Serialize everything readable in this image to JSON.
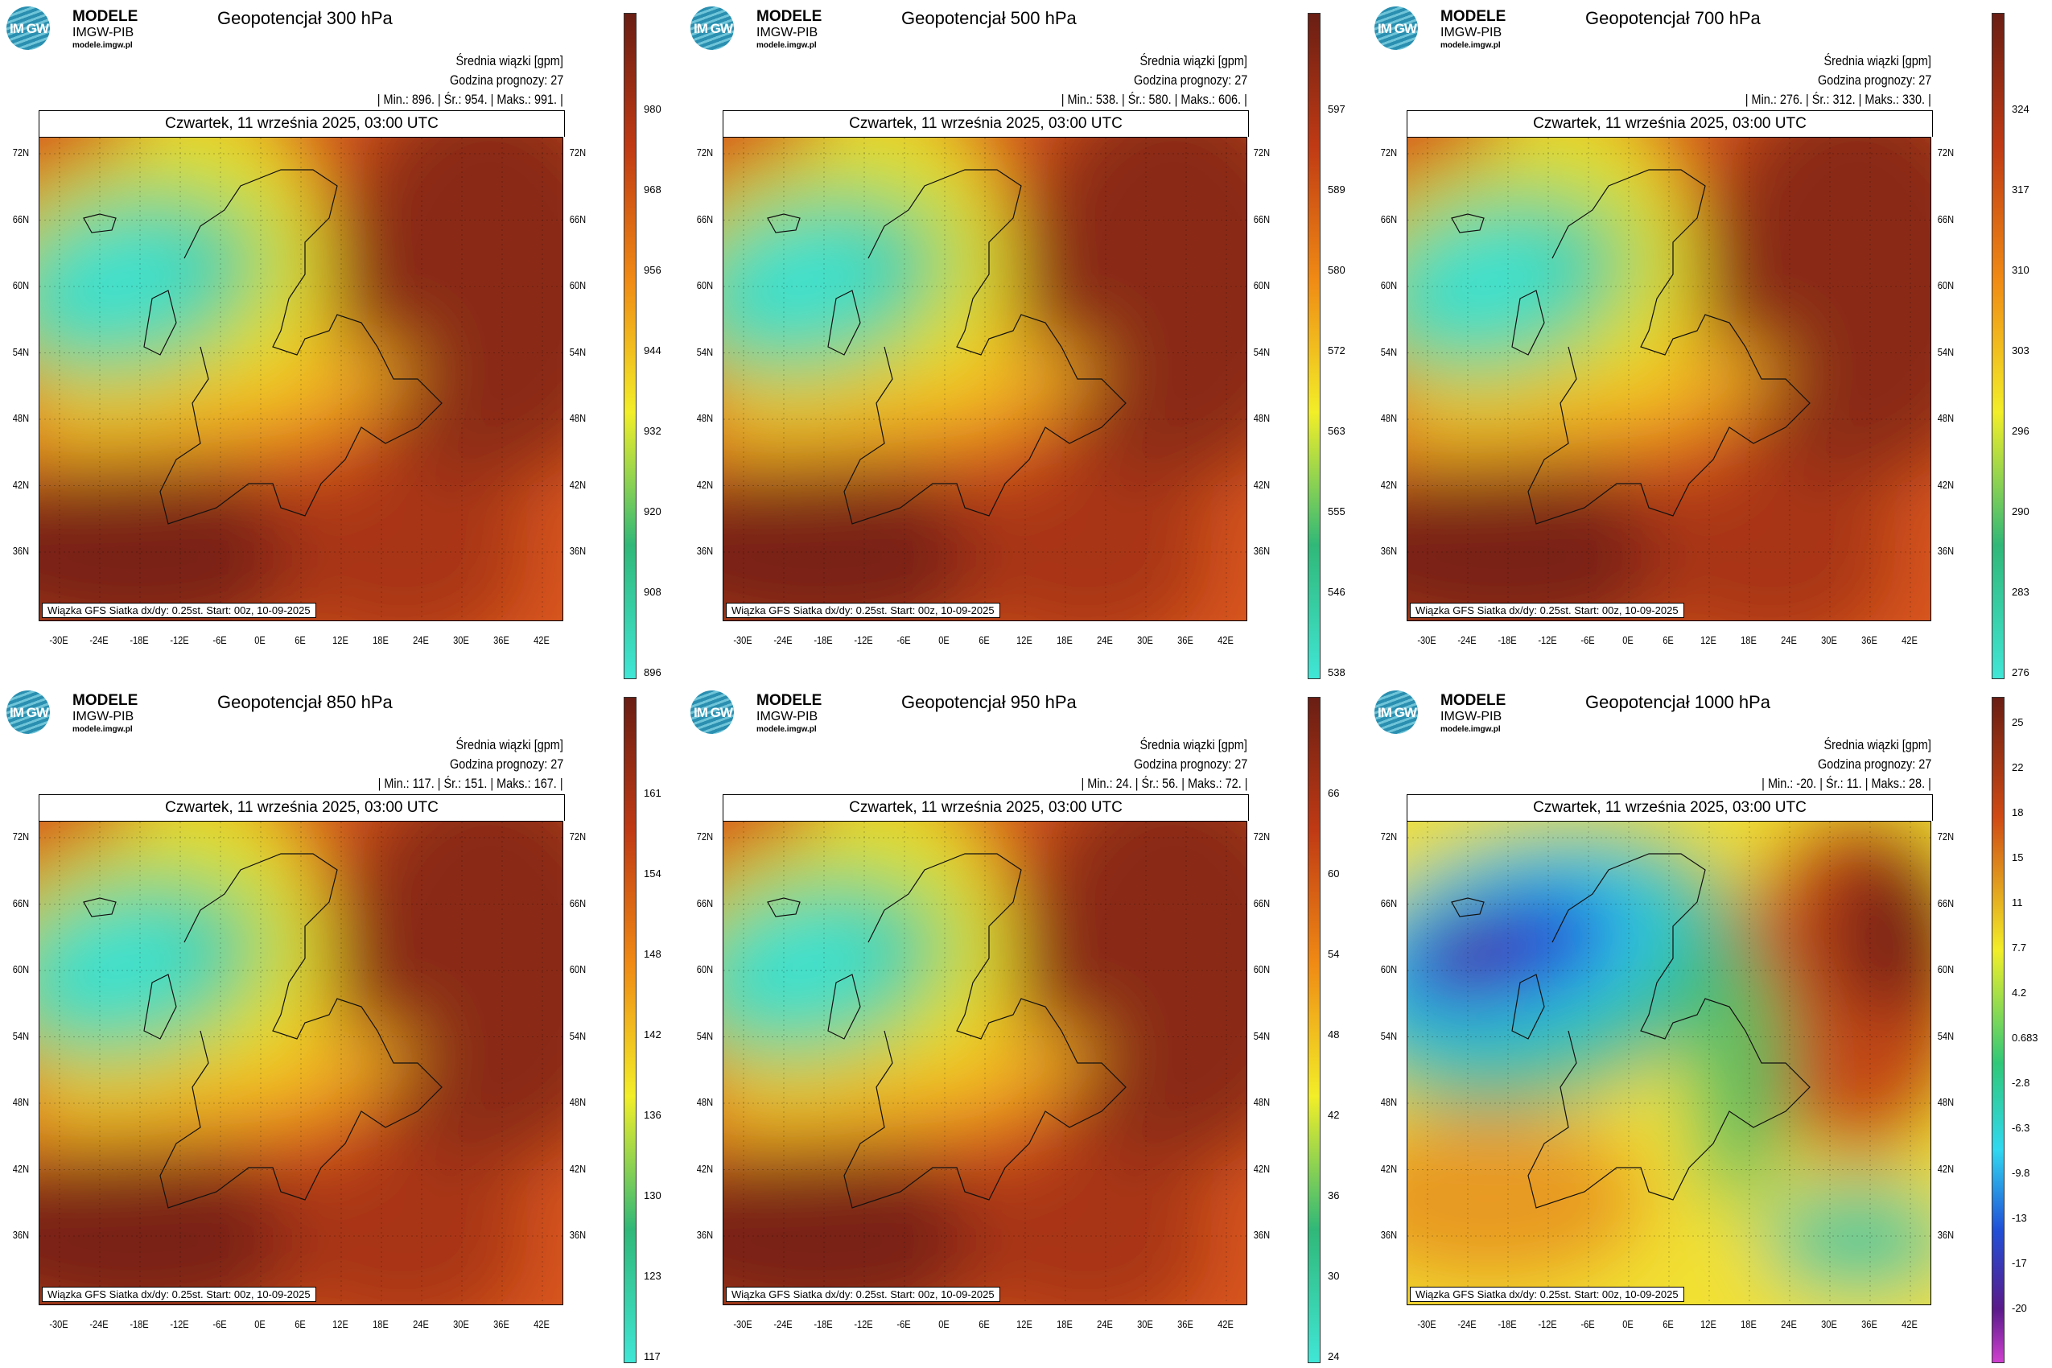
{
  "logo": {
    "line1": "MODELE",
    "line2": "IMGW-PIB",
    "line3": "modele.imgw.pl",
    "mark": "IM GW"
  },
  "common": {
    "unit_label": "Średnia wiązki [gpm]",
    "forecast_hour": "Godzina prognozy: 27",
    "date": "Czwartek, 11 września 2025, 03:00 UTC",
    "footer": "Wiązka GFS Siatka dx/dy: 0.25st. Start: 00z, 10-09-2025",
    "lat_labels": [
      "72N",
      "66N",
      "60N",
      "54N",
      "48N",
      "42N",
      "36N"
    ],
    "lon_labels": [
      "-30E",
      "-24E",
      "-18E",
      "-12E",
      "-6E",
      "0E",
      "6E",
      "12E",
      "18E",
      "24E",
      "30E",
      "36E",
      "42E"
    ]
  },
  "panels": [
    {
      "title": "Geopotencjał 300 hPa",
      "stats": "| Min.: 896. | Śr.: 954. | Maks.: 991. |",
      "colorbar": [
        "980",
        "968",
        "956",
        "944",
        "932",
        "920",
        "908",
        "896"
      ],
      "scheme": "warm"
    },
    {
      "title": "Geopotencjał 500 hPa",
      "stats": "| Min.: 538. | Śr.: 580. | Maks.: 606. |",
      "colorbar": [
        "597",
        "589",
        "580",
        "572",
        "563",
        "555",
        "546",
        "538"
      ],
      "scheme": "warm"
    },
    {
      "title": "Geopotencjał 700 hPa",
      "stats": "| Min.: 276. | Śr.: 312. | Maks.: 330. |",
      "colorbar": [
        "324",
        "317",
        "310",
        "303",
        "296",
        "290",
        "283",
        "276"
      ],
      "scheme": "warm"
    },
    {
      "title": "Geopotencjał 850 hPa",
      "stats": "| Min.: 117. | Śr.: 151. | Maks.: 167. |",
      "colorbar": [
        "161",
        "154",
        "148",
        "142",
        "136",
        "130",
        "123",
        "117"
      ],
      "scheme": "warm"
    },
    {
      "title": "Geopotencjał 950 hPa",
      "stats": "| Min.: 24. | Śr.: 56. | Maks.: 72. |",
      "colorbar": [
        "66",
        "60",
        "54",
        "48",
        "42",
        "36",
        "30",
        "24"
      ],
      "scheme": "warm"
    },
    {
      "title": "Geopotencjał 1000 hPa",
      "stats": "| Min.: -20. | Śr.: 11. | Maks.: 28. |",
      "colorbar": [
        "25",
        "22",
        "18",
        "15",
        "11",
        "7.7",
        "4.2",
        "0.683",
        "-2.8",
        "-6.3",
        "-9.8",
        "-13",
        "-17",
        "-20"
      ],
      "scheme": "cold"
    }
  ],
  "colors": {
    "low": "#40e6d6",
    "mid": "#f2ee28",
    "high": "#6a1e14",
    "cold_low": "#6a0a7a"
  }
}
